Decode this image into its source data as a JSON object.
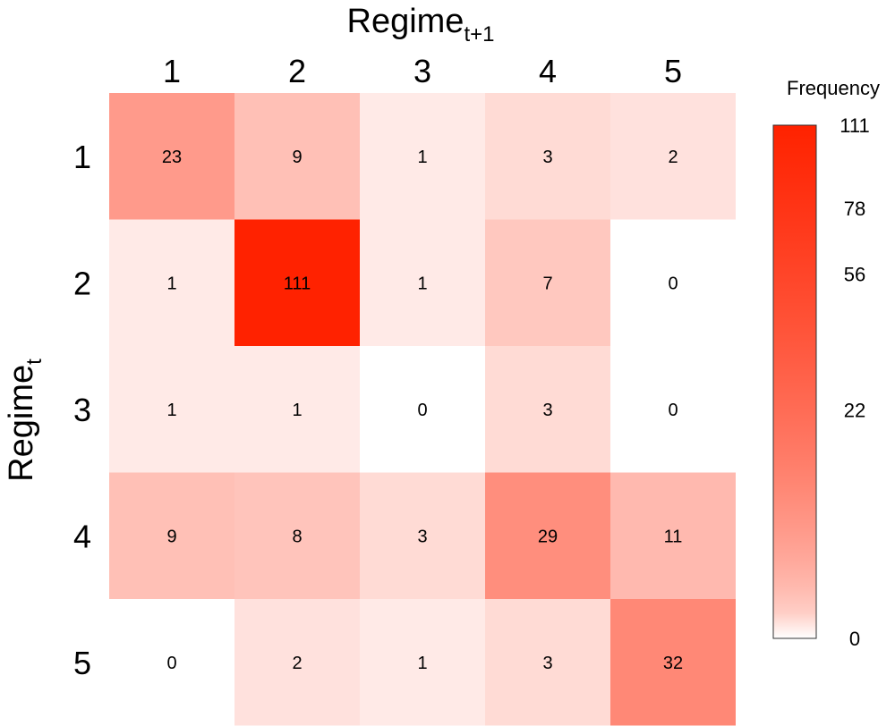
{
  "chart_data": {
    "type": "heatmap",
    "xlabel": {
      "base": "Regime",
      "sub": "t+1"
    },
    "ylabel": {
      "base": "Regime",
      "sub": "t"
    },
    "x_categories": [
      "1",
      "2",
      "3",
      "4",
      "5"
    ],
    "y_categories": [
      "1",
      "2",
      "3",
      "4",
      "5"
    ],
    "values": [
      [
        23,
        9,
        1,
        3,
        2
      ],
      [
        1,
        111,
        1,
        7,
        0
      ],
      [
        1,
        1,
        0,
        3,
        0
      ],
      [
        9,
        8,
        3,
        29,
        11
      ],
      [
        0,
        2,
        1,
        3,
        32
      ]
    ],
    "colorbar": {
      "title": "Frequency",
      "ticks": [
        "0",
        "22",
        "56",
        "78",
        "111"
      ],
      "range": [
        0,
        111
      ],
      "scale": "sqrt",
      "color_low": "#ffffff",
      "color_high": "#ff2200"
    }
  }
}
